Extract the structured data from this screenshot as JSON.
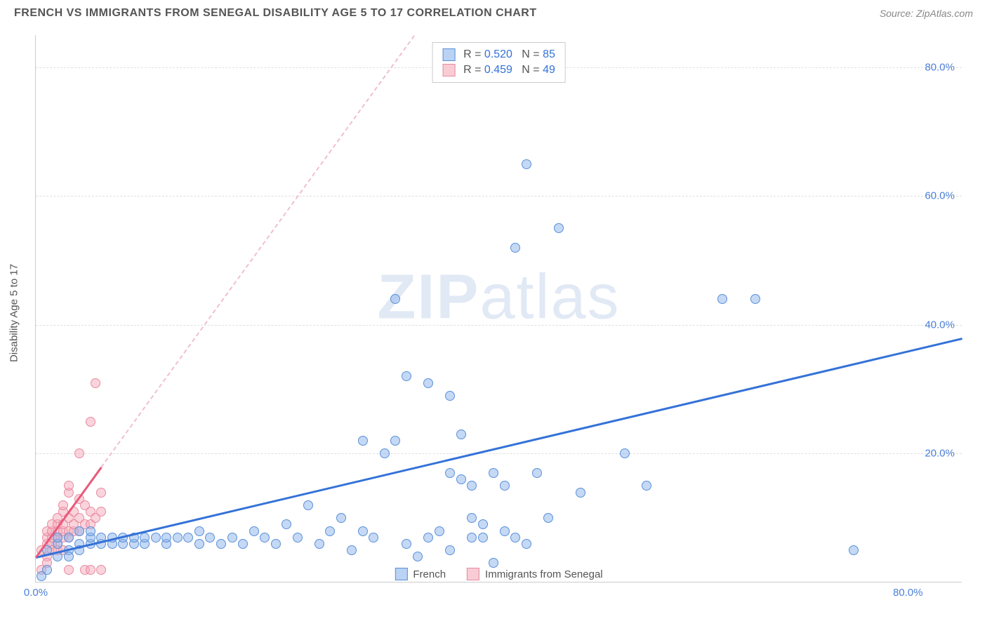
{
  "header": {
    "title": "FRENCH VS IMMIGRANTS FROM SENEGAL DISABILITY AGE 5 TO 17 CORRELATION CHART",
    "source": "Source: ZipAtlas.com"
  },
  "chart": {
    "type": "scatter",
    "ylabel": "Disability Age 5 to 17",
    "watermark_bold": "ZIP",
    "watermark_light": "atlas",
    "background_color": "#ffffff",
    "grid_color": "#e0e0e0",
    "xlim": [
      0,
      85
    ],
    "ylim": [
      0,
      85
    ],
    "xticks": [
      {
        "v": 0,
        "label": "0.0%"
      },
      {
        "v": 80,
        "label": "80.0%"
      }
    ],
    "yticks": [
      {
        "v": 20,
        "label": "20.0%"
      },
      {
        "v": 40,
        "label": "40.0%"
      },
      {
        "v": 60,
        "label": "60.0%"
      },
      {
        "v": 80,
        "label": "80.0%"
      }
    ],
    "series": {
      "blue": {
        "label": "French",
        "r": "0.520",
        "n": "85",
        "marker_color": "#8cb4eb",
        "marker_border": "#5a8fd8",
        "line_color": "#3472d8",
        "trend": {
          "x1": 0,
          "y1": 4,
          "x2": 85,
          "y2": 38
        },
        "points": [
          [
            1,
            5
          ],
          [
            2,
            6
          ],
          [
            2,
            7
          ],
          [
            3,
            5
          ],
          [
            3,
            7
          ],
          [
            4,
            6
          ],
          [
            4,
            8
          ],
          [
            5,
            6
          ],
          [
            5,
            7
          ],
          [
            5,
            8
          ],
          [
            6,
            6
          ],
          [
            6,
            7
          ],
          [
            7,
            6
          ],
          [
            7,
            7
          ],
          [
            8,
            6
          ],
          [
            8,
            7
          ],
          [
            9,
            6
          ],
          [
            9,
            7
          ],
          [
            10,
            6
          ],
          [
            10,
            7
          ],
          [
            11,
            7
          ],
          [
            12,
            6
          ],
          [
            12,
            7
          ],
          [
            13,
            7
          ],
          [
            14,
            7
          ],
          [
            15,
            6
          ],
          [
            15,
            8
          ],
          [
            16,
            7
          ],
          [
            17,
            6
          ],
          [
            18,
            7
          ],
          [
            19,
            6
          ],
          [
            20,
            8
          ],
          [
            21,
            7
          ],
          [
            22,
            6
          ],
          [
            23,
            9
          ],
          [
            24,
            7
          ],
          [
            25,
            12
          ],
          [
            26,
            6
          ],
          [
            27,
            8
          ],
          [
            28,
            10
          ],
          [
            29,
            5
          ],
          [
            30,
            22
          ],
          [
            30,
            8
          ],
          [
            31,
            7
          ],
          [
            32,
            20
          ],
          [
            33,
            22
          ],
          [
            34,
            6
          ],
          [
            34,
            32
          ],
          [
            35,
            4
          ],
          [
            36,
            31
          ],
          [
            37,
            8
          ],
          [
            38,
            5
          ],
          [
            38,
            29
          ],
          [
            39,
            16
          ],
          [
            39,
            23
          ],
          [
            40,
            7
          ],
          [
            40,
            15
          ],
          [
            41,
            7
          ],
          [
            41,
            9
          ],
          [
            42,
            17
          ],
          [
            42,
            3
          ],
          [
            43,
            8
          ],
          [
            44,
            52
          ],
          [
            44,
            7
          ],
          [
            45,
            65
          ],
          [
            46,
            17
          ],
          [
            48,
            55
          ],
          [
            50,
            14
          ],
          [
            54,
            20
          ],
          [
            56,
            15
          ],
          [
            63,
            44
          ],
          [
            66,
            44
          ],
          [
            75,
            5
          ],
          [
            33,
            44
          ],
          [
            36,
            7
          ],
          [
            38,
            17
          ],
          [
            40,
            10
          ],
          [
            43,
            15
          ],
          [
            45,
            6
          ],
          [
            47,
            10
          ],
          [
            2,
            4
          ],
          [
            3,
            4
          ],
          [
            4,
            5
          ],
          [
            1,
            2
          ],
          [
            0.5,
            1
          ]
        ]
      },
      "pink": {
        "label": "Immigrants from Senegal",
        "r": "0.459",
        "n": "49",
        "marker_color": "#f5aab9",
        "marker_border": "#e88aa0",
        "line_color": "#e85a7a",
        "trend": {
          "x1": 0,
          "y1": 4,
          "x2": 6,
          "y2": 18
        },
        "points": [
          [
            0.5,
            5
          ],
          [
            1,
            6
          ],
          [
            1,
            7
          ],
          [
            1,
            8
          ],
          [
            1.5,
            6
          ],
          [
            1.5,
            7
          ],
          [
            1.5,
            8
          ],
          [
            1.5,
            9
          ],
          [
            2,
            6
          ],
          [
            2,
            7
          ],
          [
            2,
            8
          ],
          [
            2,
            9
          ],
          [
            2,
            10
          ],
          [
            2.5,
            7
          ],
          [
            2.5,
            8
          ],
          [
            2.5,
            9
          ],
          [
            2.5,
            11
          ],
          [
            2.5,
            12
          ],
          [
            3,
            7
          ],
          [
            3,
            8
          ],
          [
            3,
            10
          ],
          [
            3,
            14
          ],
          [
            3,
            15
          ],
          [
            3.5,
            8
          ],
          [
            3.5,
            9
          ],
          [
            3.5,
            11
          ],
          [
            4,
            8
          ],
          [
            4,
            10
          ],
          [
            4,
            13
          ],
          [
            4,
            20
          ],
          [
            4.5,
            9
          ],
          [
            4.5,
            12
          ],
          [
            5,
            9
          ],
          [
            5,
            11
          ],
          [
            5,
            25
          ],
          [
            5.5,
            10
          ],
          [
            5.5,
            31
          ],
          [
            6,
            11
          ],
          [
            6,
            14
          ],
          [
            1,
            4
          ],
          [
            1,
            3
          ],
          [
            1.5,
            5
          ],
          [
            2,
            5
          ],
          [
            2.5,
            5
          ],
          [
            0.5,
            2
          ],
          [
            3,
            2
          ],
          [
            4.5,
            2
          ],
          [
            5,
            2
          ],
          [
            6,
            2
          ]
        ]
      }
    }
  }
}
